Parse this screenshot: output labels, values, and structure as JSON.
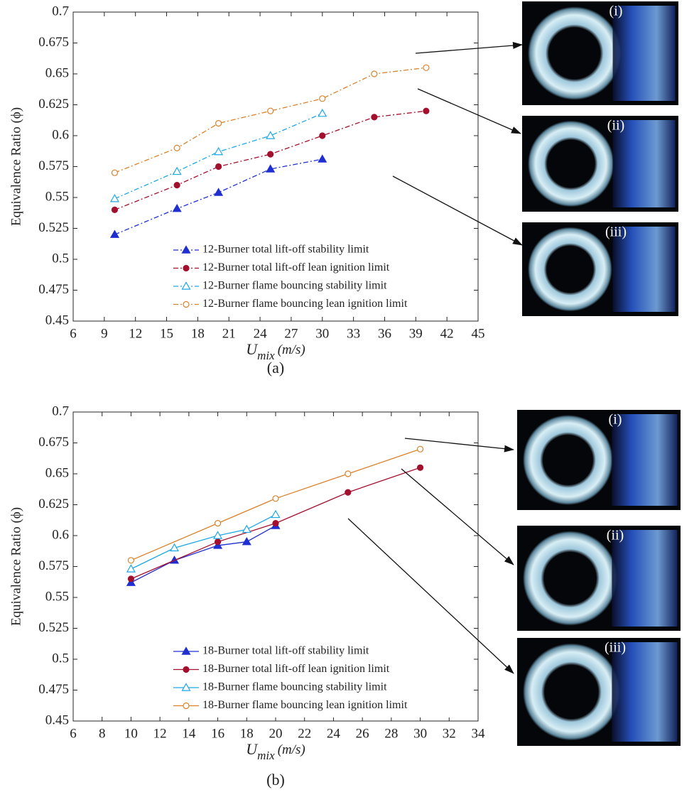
{
  "chart_data": [
    {
      "type": "line",
      "line_style": "dashdot",
      "caption": "(a)",
      "ylabel": "Equivalence Ratio (ϕ)",
      "xlabel_symbol": "U",
      "xlabel_subscript": "mix",
      "xlabel_unit": "(m/s)",
      "xlim": [
        6,
        45
      ],
      "xticks": [
        6,
        9,
        12,
        15,
        18,
        21,
        24,
        27,
        30,
        33,
        36,
        39,
        42,
        45
      ],
      "ylim": [
        0.45,
        0.7
      ],
      "yticks": [
        0.45,
        0.475,
        0.5,
        0.525,
        0.55,
        0.575,
        0.6,
        0.625,
        0.65,
        0.675,
        0.7
      ],
      "photo_labels": [
        "(i)",
        "(ii)",
        "(iii)"
      ],
      "series": [
        {
          "name": "12-Burner total lift-off stability limit",
          "color": "#1f2fd0",
          "marker": "triangle-filled",
          "x": [
            10,
            16,
            20,
            25,
            30
          ],
          "values": [
            0.52,
            0.541,
            0.554,
            0.573,
            0.581
          ]
        },
        {
          "name": "12-Burner total lift-off lean ignition limit",
          "color": "#a3102e",
          "marker": "circle-filled",
          "x": [
            10,
            16,
            20,
            25,
            30,
            35,
            40
          ],
          "values": [
            0.54,
            0.56,
            0.575,
            0.585,
            0.6,
            0.615,
            0.62
          ]
        },
        {
          "name": "12-Burner flame bouncing stability limit",
          "color": "#1ea8e6",
          "marker": "triangle-open",
          "x": [
            10,
            16,
            20,
            25,
            30
          ],
          "values": [
            0.549,
            0.571,
            0.587,
            0.6,
            0.618
          ]
        },
        {
          "name": "12-Burner flame bouncing lean ignition limit",
          "color": "#d9822b",
          "marker": "circle-open",
          "x": [
            10,
            16,
            20,
            25,
            30,
            35,
            40
          ],
          "values": [
            0.57,
            0.59,
            0.61,
            0.62,
            0.63,
            0.65,
            0.655
          ]
        }
      ]
    },
    {
      "type": "line",
      "line_style": "solid",
      "caption": "(b)",
      "ylabel": "Equivalence Ratio (ϕ)",
      "xlabel_symbol": "U",
      "xlabel_subscript": "mix",
      "xlabel_unit": "(m/s)",
      "xlim": [
        6,
        34
      ],
      "xticks": [
        6,
        8,
        10,
        12,
        14,
        16,
        18,
        20,
        22,
        24,
        26,
        28,
        30,
        32,
        34
      ],
      "ylim": [
        0.45,
        0.7
      ],
      "yticks": [
        0.45,
        0.475,
        0.5,
        0.525,
        0.55,
        0.575,
        0.6,
        0.625,
        0.65,
        0.675,
        0.7
      ],
      "photo_labels": [
        "(i)",
        "(ii)",
        "(iii)"
      ],
      "series": [
        {
          "name": "18-Burner total lift-off stability limit",
          "color": "#1f2fd0",
          "marker": "triangle-filled",
          "x": [
            10,
            13,
            16,
            18,
            20
          ],
          "values": [
            0.562,
            0.58,
            0.592,
            0.595,
            0.608
          ]
        },
        {
          "name": "18-Burner total lift-off lean ignition limit",
          "color": "#a3102e",
          "marker": "circle-filled",
          "x": [
            10,
            16,
            20,
            25,
            30
          ],
          "values": [
            0.565,
            0.595,
            0.61,
            0.635,
            0.655
          ]
        },
        {
          "name": "18-Burner flame bouncing stability limit",
          "color": "#1ea8e6",
          "marker": "triangle-open",
          "x": [
            10,
            13,
            16,
            18,
            20
          ],
          "values": [
            0.573,
            0.59,
            0.6,
            0.605,
            0.617
          ]
        },
        {
          "name": "18-Burner flame bouncing lean ignition limit",
          "color": "#d9822b",
          "marker": "circle-open",
          "x": [
            10,
            16,
            20,
            25,
            30
          ],
          "values": [
            0.58,
            0.61,
            0.63,
            0.65,
            0.67
          ]
        }
      ]
    }
  ]
}
